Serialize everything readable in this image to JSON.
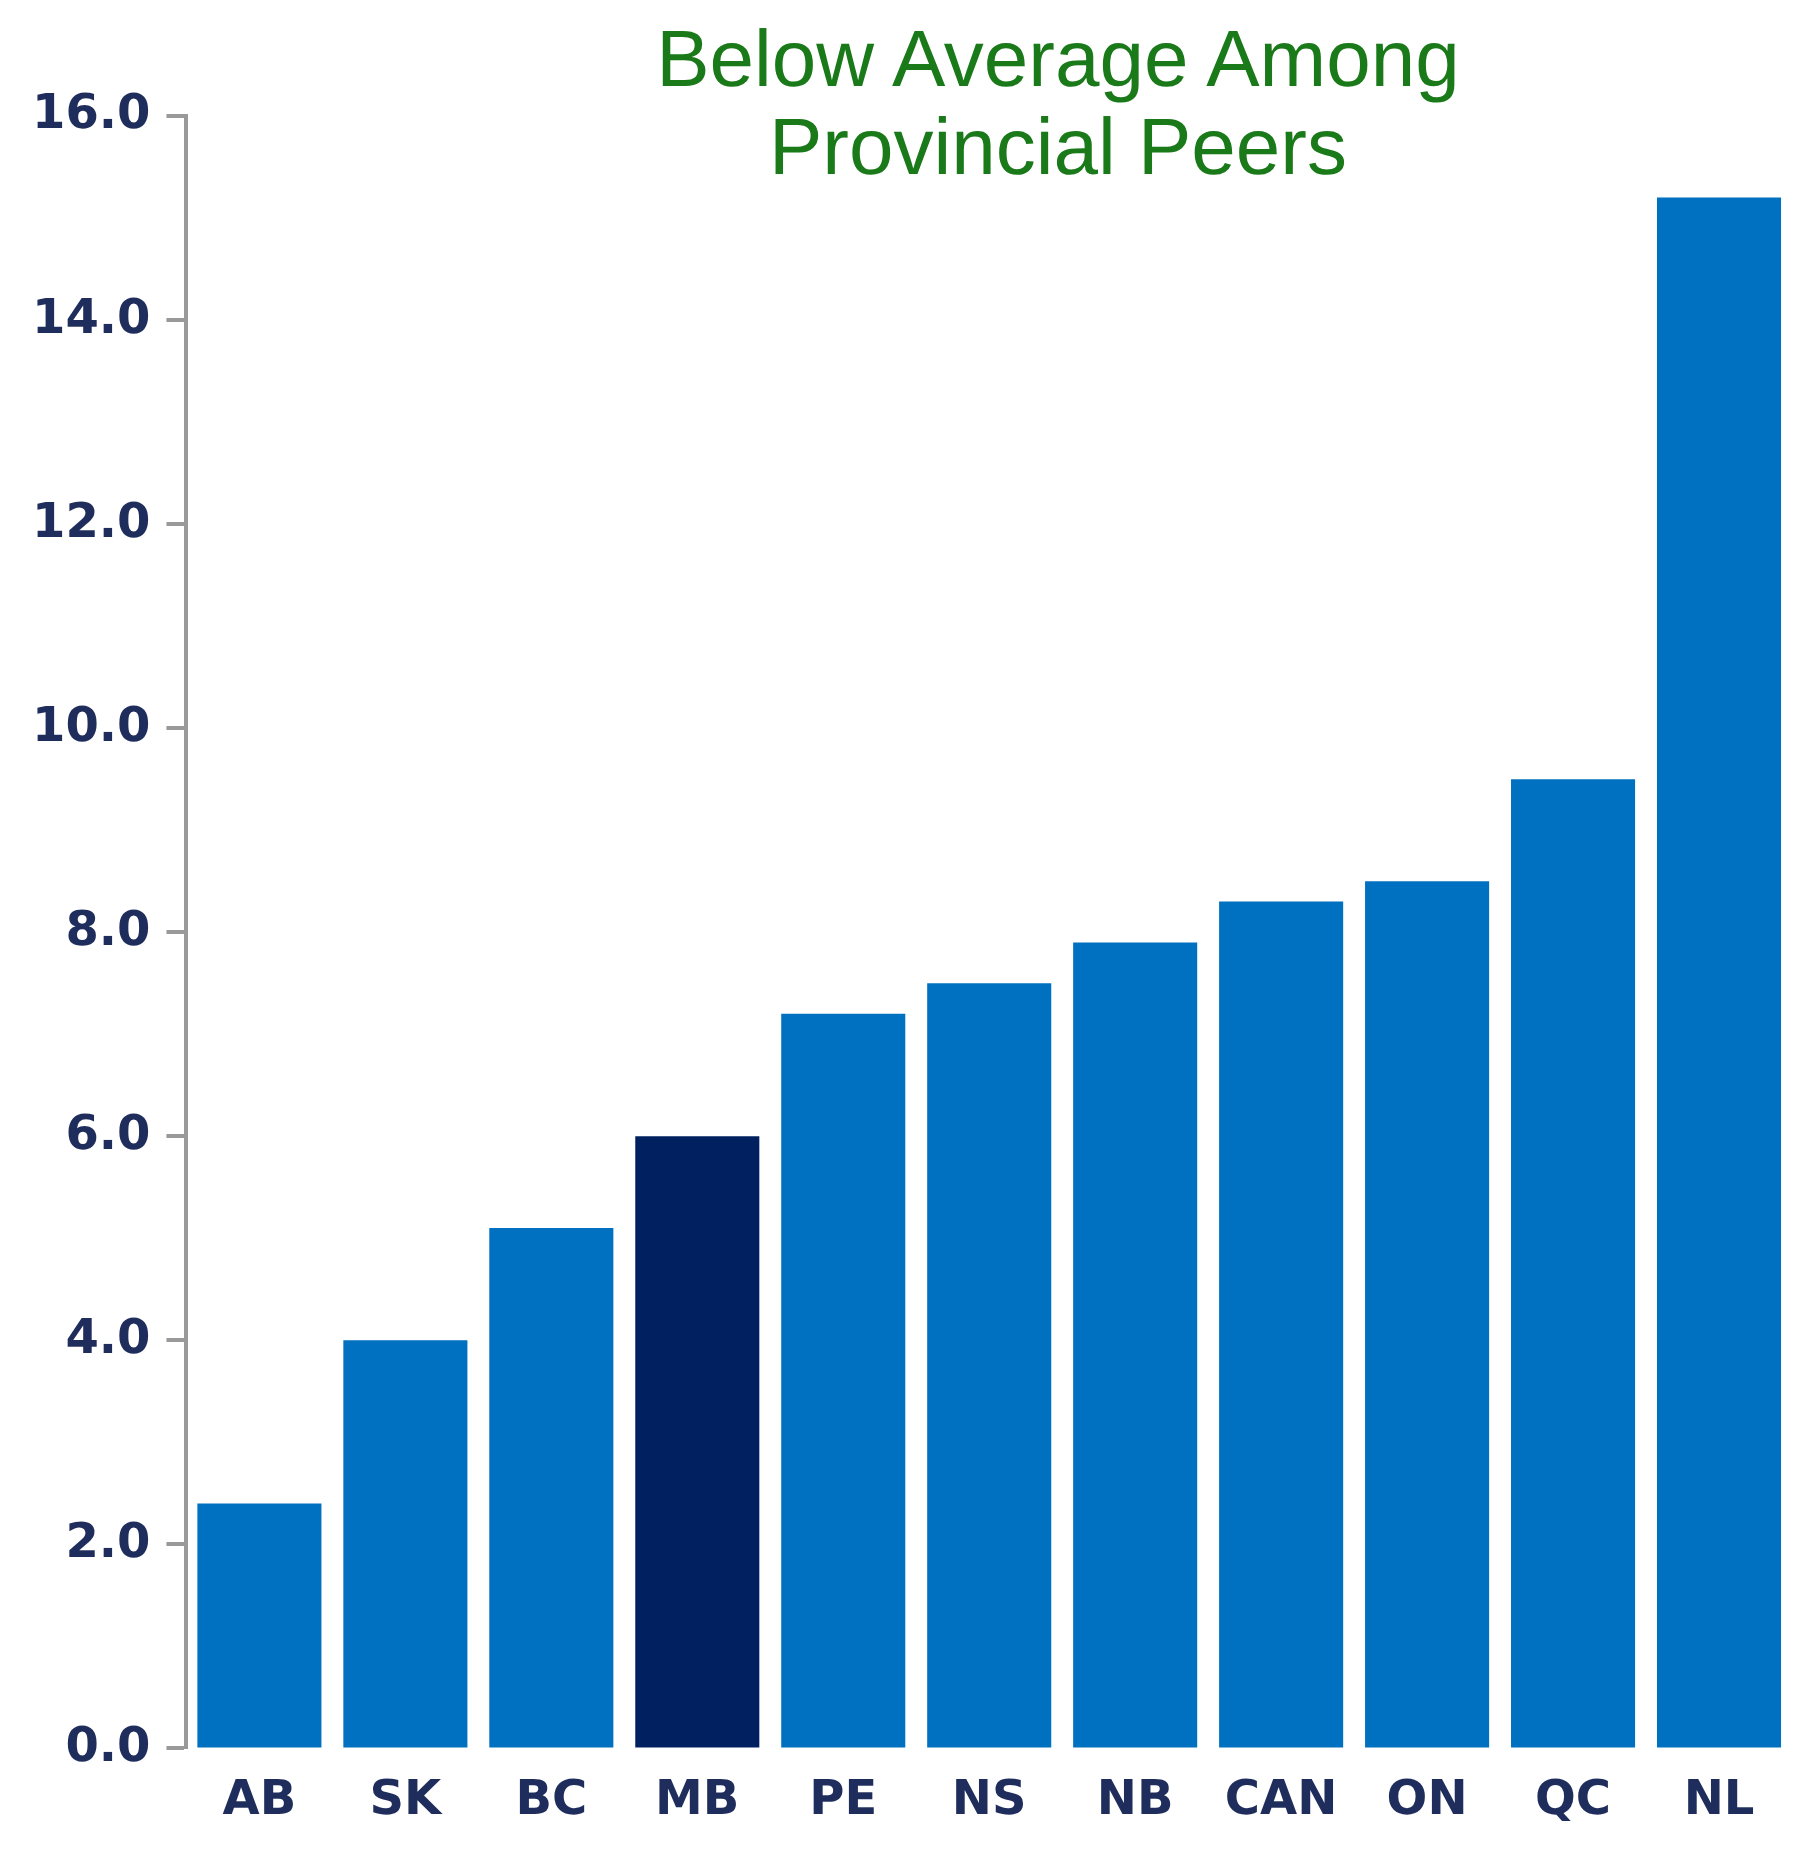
{
  "chart_data": {
    "type": "bar",
    "title": "Below Average Among Provincial Peers",
    "categories": [
      "AB",
      "SK",
      "BC",
      "MB",
      "PE",
      "NS",
      "NB",
      "CAN",
      "ON",
      "QC",
      "NL"
    ],
    "values": [
      2.4,
      4.0,
      5.1,
      6.0,
      7.2,
      7.5,
      7.9,
      8.3,
      8.5,
      9.5,
      15.2
    ],
    "colors": [
      "#0070c0",
      "#0070c0",
      "#0070c0",
      "#002060",
      "#0070c0",
      "#0070c0",
      "#0070c0",
      "#0070c0",
      "#0070c0",
      "#0070c0",
      "#0070c0"
    ],
    "ylim": [
      0,
      16
    ],
    "yticks": [
      {
        "value": 0,
        "label": "0.0"
      },
      {
        "value": 2,
        "label": "2.0"
      },
      {
        "value": 4,
        "label": "4.0"
      },
      {
        "value": 6,
        "label": "6.0"
      },
      {
        "value": 8,
        "label": "8.0"
      },
      {
        "value": 10,
        "label": "10.0"
      },
      {
        "value": 12,
        "label": "12.0"
      },
      {
        "value": 14,
        "label": "14.0"
      },
      {
        "value": 16,
        "label": "16.0"
      }
    ],
    "grid": false,
    "legend": false
  }
}
